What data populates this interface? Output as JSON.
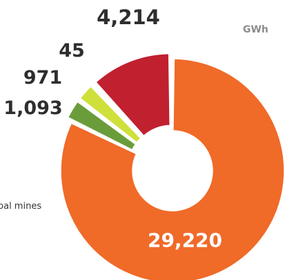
{
  "chart_data": {
    "type": "pie",
    "donut": true,
    "unit": "GWh",
    "side_label": "coal mines",
    "slices": [
      {
        "value": 29220,
        "label": "29,220",
        "color": "#f06a28"
      },
      {
        "value": 1093,
        "label": "1,093",
        "color": "#6a9d3a"
      },
      {
        "value": 971,
        "label": "971",
        "color": "#cfe03a"
      },
      {
        "value": 45,
        "label": "45",
        "color": "#8c8c8c"
      },
      {
        "value": 4214,
        "label": "4,214",
        "color": "#c1202f"
      }
    ]
  }
}
